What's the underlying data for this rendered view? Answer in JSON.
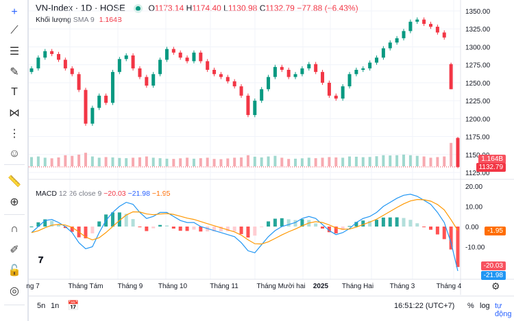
{
  "header": {
    "symbol": "VN-Index · 1D · HOSE",
    "open_label": "O",
    "open": "1173.14",
    "high_label": "H",
    "high": "1174.40",
    "low_label": "L",
    "low": "1130.98",
    "close_label": "C",
    "close": "1132.79",
    "change": "−77.88 (−6.43%)"
  },
  "volume_legend": {
    "label": "Khối lượng",
    "sma": "SMA 9",
    "value": "1.164B"
  },
  "macd_legend": {
    "label": "MACD",
    "params": "12 26 close 9",
    "hist": "−20.03",
    "macd": "−21.98",
    "signal": "−1.95"
  },
  "price_axis": [
    "1350.00",
    "1325.00",
    "1300.00",
    "1275.00",
    "1250.00",
    "1225.00",
    "1200.00",
    "1175.00",
    "1150.00",
    "1125.00"
  ],
  "macd_axis": [
    "20.00",
    "10.00",
    "0.00",
    "-10.00"
  ],
  "tags": {
    "volume": "1.164B",
    "price": "1132.79",
    "signal": "-1.95",
    "hist": "-20.03",
    "macd": "-21.98"
  },
  "time_axis": [
    "ng 7",
    "Tháng Tám",
    "Tháng 9",
    "Tháng 10",
    "Tháng 11",
    "Tháng Mười hai",
    "2025",
    "Tháng Hai",
    "Tháng 3",
    "Tháng 4"
  ],
  "bottom": {
    "range_5d": "5n",
    "range_1d": "1n",
    "time": "16:51:22 (UTC+7)",
    "percent": "%",
    "log": "log",
    "auto": "tự động"
  },
  "tools": [
    "crosshair-icon",
    "trendline-icon",
    "fib-icon",
    "brush-icon",
    "text-icon",
    "pattern-icon",
    "measure-icon",
    "emoji-icon",
    "ruler-icon",
    "zoom-in-icon",
    "magnet-icon",
    "lock-draw-icon",
    "lock-icon",
    "eye-icon"
  ],
  "colors": {
    "up": "#089981",
    "down": "#f23645",
    "macd": "#2962ff",
    "signal": "#ff6d00",
    "accent": "#2962ff"
  },
  "chart_data": {
    "type": "candlestick",
    "price_range": [
      1115,
      1355
    ],
    "closes": [
      1270,
      1285,
      1294,
      1290,
      1282,
      1270,
      1262,
      1240,
      1193,
      1215,
      1232,
      1222,
      1265,
      1283,
      1288,
      1270,
      1258,
      1246,
      1262,
      1282,
      1297,
      1292,
      1285,
      1280,
      1292,
      1280,
      1268,
      1262,
      1258,
      1252,
      1245,
      1232,
      1205,
      1225,
      1241,
      1258,
      1272,
      1268,
      1258,
      1262,
      1270,
      1276,
      1265,
      1250,
      1232,
      1228,
      1245,
      1262,
      1268,
      1270,
      1278,
      1285,
      1298,
      1306,
      1312,
      1322,
      1335,
      1338,
      1332,
      1328,
      1320,
      1313,
      1241,
      1133
    ],
    "last_bar": {
      "open": 1173.14,
      "high": 1174.4,
      "low": 1130.98,
      "close": 1132.79
    },
    "volume_b": [
      0.75,
      0.8,
      0.7,
      0.65,
      0.72,
      0.9,
      0.85,
      0.95,
      1.1,
      0.8,
      0.7,
      0.75,
      0.72,
      0.68,
      0.66,
      0.7,
      0.73,
      0.8,
      0.7,
      0.66,
      0.62,
      0.6,
      0.65,
      0.7,
      0.62,
      0.66,
      0.7,
      0.6,
      0.58,
      0.64,
      0.7,
      0.72,
      0.9,
      0.78,
      0.72,
      0.8,
      0.85,
      0.7,
      0.6,
      0.62,
      0.65,
      0.7,
      0.66,
      0.7,
      0.75,
      0.72,
      0.7,
      0.8,
      0.78,
      0.74,
      0.76,
      0.82,
      0.9,
      0.88,
      0.9,
      0.95,
      0.9,
      0.85,
      0.8,
      0.7,
      0.75,
      0.8,
      1.9,
      2.3
    ],
    "macd": [
      -3,
      0,
      3,
      3.5,
      2,
      0,
      -3,
      -8,
      -11,
      -10,
      -3,
      3,
      7,
      10,
      12,
      11,
      7,
      4,
      5,
      7,
      7,
      5,
      3,
      2,
      2,
      0,
      -1,
      -2,
      -3,
      -4,
      -5,
      -8,
      -12,
      -13,
      -9,
      -5,
      -2,
      0,
      1,
      2,
      4,
      5,
      4,
      1,
      -2,
      -4,
      -3,
      -1,
      2,
      4,
      5,
      7,
      10,
      12,
      14,
      15.5,
      16,
      15,
      13,
      11,
      7,
      2,
      -8,
      -21.98
    ],
    "macd_range": [
      -24,
      22
    ]
  }
}
